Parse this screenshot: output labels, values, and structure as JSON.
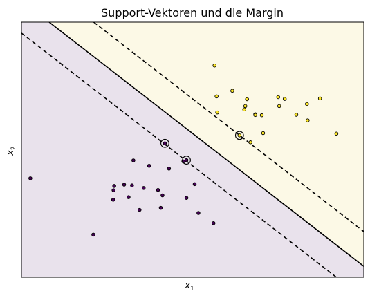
{
  "chart_data": {
    "type": "scatter",
    "title": "Support-Vektoren und die Margin",
    "xlabel": "x",
    "xlabel_sub": "1",
    "ylabel": "x",
    "ylabel_sub": "2",
    "xlim": [
      0,
      100
    ],
    "ylim": [
      0,
      100
    ],
    "grid": false,
    "ticks_shown": false,
    "colors": {
      "class_0_region": "#e9e2ec",
      "class_1_region": "#fcf9e6",
      "class_0_point": "#440154",
      "class_1_point": "#fde725",
      "point_edge": "#000000",
      "boundary": "#000000"
    },
    "decision_boundary": {
      "line": [
        [
          8.1,
          100
        ],
        [
          100,
          4.3
        ]
      ],
      "style": "solid"
    },
    "margins": [
      {
        "line": [
          [
            0,
            95.7
          ],
          [
            92,
            0
          ]
        ],
        "style": "dashed"
      },
      {
        "line": [
          [
            21.1,
            100
          ],
          [
            100,
            17.9
          ]
        ],
        "style": "dashed"
      }
    ],
    "series": [
      {
        "class": 0,
        "points": [
          [
            2.6,
            38.8
          ],
          [
            32.7,
            45.8
          ],
          [
            27.1,
            35.8
          ],
          [
            30.0,
            36.3
          ],
          [
            32.3,
            36.0
          ],
          [
            35.7,
            35.0
          ],
          [
            39.9,
            34.2
          ],
          [
            26.9,
            34.1
          ],
          [
            47.3,
            45.4
          ],
          [
            43.1,
            42.6
          ],
          [
            37.3,
            43.7
          ],
          [
            50.6,
            36.5
          ],
          [
            48.2,
            31.1
          ],
          [
            31.3,
            31.4
          ],
          [
            41.2,
            32.1
          ],
          [
            26.8,
            30.4
          ],
          [
            34.5,
            26.4
          ],
          [
            40.7,
            27.2
          ],
          [
            51.7,
            25.2
          ],
          [
            56.1,
            21.2
          ],
          [
            21.0,
            16.7
          ],
          [
            41.9,
            52.5
          ],
          [
            48.2,
            45.9
          ]
        ]
      },
      {
        "class": 1,
        "points": [
          [
            56.4,
            83.0
          ],
          [
            57.0,
            70.9
          ],
          [
            61.6,
            73.1
          ],
          [
            57.2,
            64.6
          ],
          [
            65.1,
            65.8
          ],
          [
            65.9,
            69.8
          ],
          [
            65.4,
            67.1
          ],
          [
            68.3,
            63.9
          ],
          [
            68.3,
            63.6
          ],
          [
            70.2,
            63.5
          ],
          [
            75.3,
            67.1
          ],
          [
            75.0,
            70.6
          ],
          [
            76.9,
            69.9
          ],
          [
            80.3,
            63.7
          ],
          [
            83.6,
            61.5
          ],
          [
            83.4,
            67.9
          ],
          [
            87.2,
            70.1
          ],
          [
            70.6,
            56.5
          ],
          [
            66.9,
            52.9
          ],
          [
            92.0,
            56.3
          ],
          [
            63.7,
            55.6
          ]
        ]
      }
    ],
    "support_vectors": [
      [
        41.9,
        52.5
      ],
      [
        48.2,
        45.9
      ],
      [
        63.7,
        55.6
      ]
    ]
  }
}
